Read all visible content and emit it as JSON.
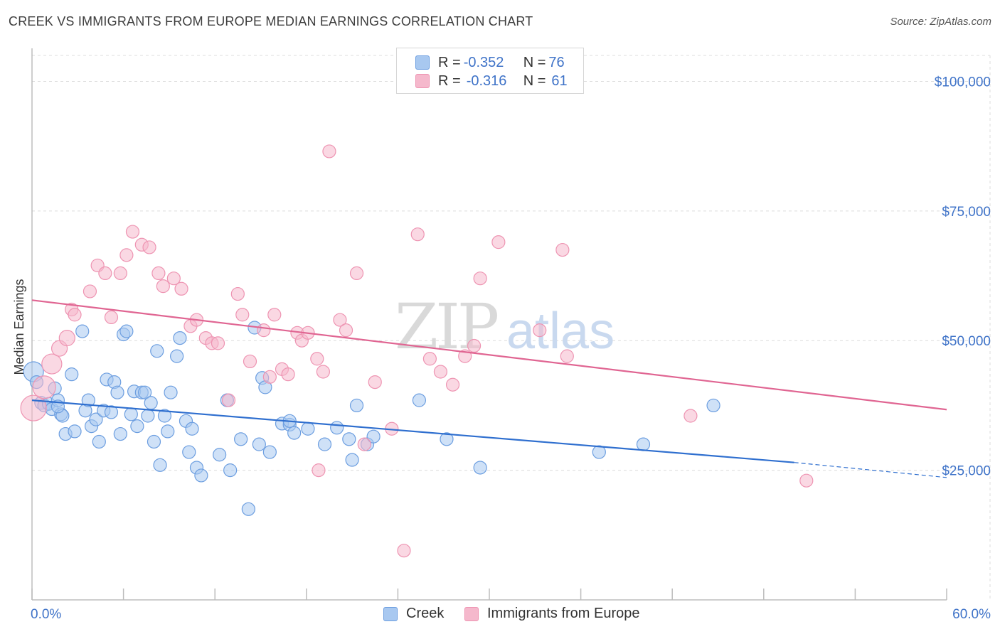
{
  "header": {
    "title": "CREEK VS IMMIGRANTS FROM EUROPE MEDIAN EARNINGS CORRELATION CHART",
    "source": "Source: ZipAtlas.com"
  },
  "watermark": {
    "zip": "ZIP",
    "atlas": "atlas"
  },
  "legend": {
    "rows": [
      {
        "r_label": "R = ",
        "r_value": "-0.352",
        "n_label": "N = ",
        "n_value": "76",
        "color": "#a8c8f0"
      },
      {
        "r_label": "R = ",
        "r_value": "-0.316",
        "n_label": "N = ",
        "n_value": "61",
        "color": "#f5b8cc"
      }
    ]
  },
  "bottom_legend": {
    "creek": "Creek",
    "europe": "Immigrants from Europe"
  },
  "chart_data": {
    "type": "scatter",
    "title": "CREEK VS IMMIGRANTS FROM EUROPE MEDIAN EARNINGS CORRELATION CHART",
    "xlabel": "",
    "ylabel": "Median Earnings",
    "xlim": [
      0,
      60
    ],
    "ylim": [
      0,
      105000
    ],
    "x_tick_labels": [
      "0.0%",
      "60.0%"
    ],
    "y_ticks": [
      25000,
      50000,
      75000,
      100000
    ],
    "y_tick_labels": [
      "$25,000",
      "$50,000",
      "$75,000",
      "$100,000"
    ],
    "grid": true,
    "legend_position": "top-center",
    "series": [
      {
        "name": "Creek",
        "color": "#a8c8f0",
        "stroke": "#6c9ee0",
        "trend_color": "#2f6fcf",
        "trend": {
          "x0": 0,
          "y0": 38500,
          "x1": 50,
          "y1": 26500,
          "dash_to_x": 60,
          "dash_to_y": 23600
        },
        "points": [
          [
            0.1,
            44000,
            14
          ],
          [
            0.3,
            42000,
            9
          ],
          [
            0.6,
            38000,
            9
          ],
          [
            0.8,
            37500,
            9
          ],
          [
            1.1,
            37800,
            9
          ],
          [
            1.3,
            36800,
            9
          ],
          [
            1.5,
            40800,
            9
          ],
          [
            1.7,
            38500,
            9
          ],
          [
            1.9,
            35800,
            9
          ],
          [
            2.0,
            35500,
            9
          ],
          [
            2.2,
            32000,
            9
          ],
          [
            2.6,
            43500,
            9
          ],
          [
            2.8,
            32500,
            9
          ],
          [
            3.3,
            51800,
            9
          ],
          [
            3.5,
            36500,
            9
          ],
          [
            3.7,
            38500,
            9
          ],
          [
            3.9,
            33500,
            9
          ],
          [
            4.2,
            34800,
            9
          ],
          [
            4.4,
            30500,
            9
          ],
          [
            4.7,
            36500,
            9
          ],
          [
            4.9,
            42500,
            9
          ],
          [
            5.2,
            36200,
            9
          ],
          [
            5.4,
            42000,
            9
          ],
          [
            5.6,
            40000,
            9
          ],
          [
            5.8,
            32000,
            9
          ],
          [
            6.0,
            51200,
            9
          ],
          [
            6.2,
            51800,
            9
          ],
          [
            6.5,
            35800,
            9
          ],
          [
            6.7,
            40200,
            9
          ],
          [
            6.9,
            33500,
            9
          ],
          [
            7.2,
            40000,
            9
          ],
          [
            7.4,
            40000,
            9
          ],
          [
            7.6,
            35500,
            9
          ],
          [
            7.8,
            38000,
            9
          ],
          [
            8.0,
            30500,
            9
          ],
          [
            8.2,
            48000,
            9
          ],
          [
            8.4,
            26000,
            9
          ],
          [
            8.7,
            35500,
            9
          ],
          [
            8.9,
            32500,
            9
          ],
          [
            9.1,
            40000,
            9
          ],
          [
            9.5,
            47000,
            9
          ],
          [
            9.7,
            50500,
            9
          ],
          [
            10.1,
            34500,
            9
          ],
          [
            10.3,
            28500,
            9
          ],
          [
            10.5,
            33000,
            9
          ],
          [
            10.8,
            25500,
            9
          ],
          [
            11.1,
            24000,
            9
          ],
          [
            12.3,
            28000,
            9
          ],
          [
            12.8,
            38500,
            9
          ],
          [
            13.0,
            25000,
            9
          ],
          [
            13.7,
            31000,
            9
          ],
          [
            14.2,
            17500,
            9
          ],
          [
            14.6,
            52500,
            9
          ],
          [
            14.9,
            30000,
            9
          ],
          [
            15.1,
            42800,
            9
          ],
          [
            15.3,
            41000,
            9
          ],
          [
            15.6,
            28500,
            9
          ],
          [
            16.4,
            34000,
            9
          ],
          [
            16.9,
            33800,
            9
          ],
          [
            17.2,
            32200,
            9
          ],
          [
            18.1,
            33000,
            9
          ],
          [
            19.2,
            30000,
            9
          ],
          [
            20.0,
            33200,
            9
          ],
          [
            20.8,
            31000,
            9
          ],
          [
            21.0,
            27000,
            9
          ],
          [
            21.3,
            37500,
            9
          ],
          [
            22.0,
            30000,
            9
          ],
          [
            22.4,
            31500,
            9
          ],
          [
            25.4,
            38500,
            9
          ],
          [
            27.2,
            31000,
            9
          ],
          [
            29.4,
            25500,
            9
          ],
          [
            37.2,
            28500,
            9
          ],
          [
            40.1,
            30000,
            9
          ],
          [
            44.7,
            37500,
            9
          ],
          [
            16.9,
            34500,
            9
          ],
          [
            1.7,
            37300,
            9
          ]
        ]
      },
      {
        "name": "Immigrants from Europe",
        "color": "#f5b8cc",
        "stroke": "#ee94b2",
        "trend_color": "#e06592",
        "trend": {
          "x0": 0,
          "y0": 57800,
          "x1": 60,
          "y1": 36700
        },
        "points": [
          [
            0.1,
            37000,
            18
          ],
          [
            0.8,
            41000,
            16
          ],
          [
            1.3,
            45500,
            14
          ],
          [
            1.8,
            48500,
            11
          ],
          [
            2.3,
            50500,
            11
          ],
          [
            2.6,
            56000,
            9
          ],
          [
            2.8,
            55000,
            9
          ],
          [
            3.8,
            59500,
            9
          ],
          [
            4.3,
            64500,
            9
          ],
          [
            4.8,
            63000,
            9
          ],
          [
            5.2,
            54500,
            9
          ],
          [
            5.8,
            63000,
            9
          ],
          [
            6.2,
            66500,
            9
          ],
          [
            6.6,
            71000,
            9
          ],
          [
            7.2,
            68500,
            9
          ],
          [
            7.7,
            68000,
            9
          ],
          [
            8.3,
            63000,
            9
          ],
          [
            8.6,
            60500,
            9
          ],
          [
            9.3,
            62000,
            9
          ],
          [
            9.8,
            60000,
            9
          ],
          [
            10.4,
            52800,
            9
          ],
          [
            10.8,
            54000,
            9
          ],
          [
            11.4,
            50500,
            9
          ],
          [
            11.8,
            49500,
            9
          ],
          [
            12.2,
            49500,
            9
          ],
          [
            12.9,
            38500,
            9
          ],
          [
            13.5,
            59000,
            9
          ],
          [
            13.8,
            55000,
            9
          ],
          [
            14.3,
            46000,
            9
          ],
          [
            15.2,
            52000,
            9
          ],
          [
            15.6,
            43000,
            9
          ],
          [
            15.9,
            55000,
            9
          ],
          [
            16.4,
            44500,
            9
          ],
          [
            16.8,
            43500,
            9
          ],
          [
            17.4,
            51500,
            9
          ],
          [
            17.7,
            50000,
            9
          ],
          [
            18.1,
            51500,
            9
          ],
          [
            18.7,
            46500,
            9
          ],
          [
            19.1,
            44000,
            9
          ],
          [
            19.5,
            86500,
            9
          ],
          [
            20.2,
            54000,
            9
          ],
          [
            20.6,
            52000,
            9
          ],
          [
            21.3,
            63000,
            9
          ],
          [
            22.5,
            42000,
            9
          ],
          [
            23.6,
            33000,
            9
          ],
          [
            24.4,
            9500,
            9
          ],
          [
            25.3,
            70500,
            9
          ],
          [
            26.1,
            46500,
            9
          ],
          [
            26.8,
            44000,
            9
          ],
          [
            27.6,
            41500,
            9
          ],
          [
            28.4,
            47000,
            9
          ],
          [
            29.0,
            49000,
            9
          ],
          [
            29.4,
            62000,
            9
          ],
          [
            30.6,
            69000,
            9
          ],
          [
            33.3,
            52000,
            9
          ],
          [
            34.8,
            67500,
            9
          ],
          [
            35.1,
            47000,
            9
          ],
          [
            43.2,
            35500,
            9
          ],
          [
            50.8,
            23000,
            9
          ],
          [
            18.8,
            25000,
            9
          ],
          [
            21.8,
            30000,
            9
          ]
        ]
      }
    ]
  }
}
